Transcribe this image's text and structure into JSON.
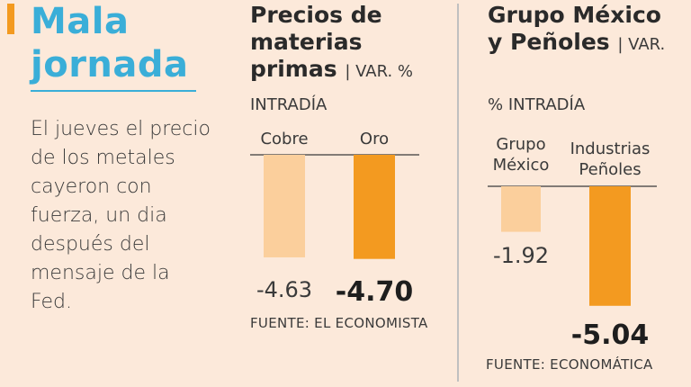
{
  "headline": {
    "line1": "Mala",
    "line2": "jornada"
  },
  "intro": "El jueves el precio de los metales cayeron con fuerza, un dia después del mensaje de la Fed.",
  "colors": {
    "accent": "#f39a20",
    "light_bar": "#fbcf9c",
    "dark_bar": "#f39a20",
    "headline": "#3aaed8",
    "background": "#fce9da"
  },
  "chart_data": [
    {
      "type": "bar",
      "title": "Precios de materias primas",
      "unit_label": "| VAR. %",
      "unit_label_2": "INTRADÍA",
      "categories": [
        "Cobre",
        "Oro"
      ],
      "values": [
        -4.63,
        -4.7
      ],
      "value_labels": [
        "-4.63",
        "-4.70"
      ],
      "ylim": [
        -5.2,
        0
      ],
      "source": "FUENTE: EL ECONOMISTA"
    },
    {
      "type": "bar",
      "title": "Grupo México y Peñoles",
      "unit_label": "| VAR.",
      "unit_label_2": "% INTRADÍA",
      "categories": [
        "Grupo México",
        "Industrias Peñoles"
      ],
      "values": [
        -1.92,
        -5.04
      ],
      "value_labels": [
        "-1.92",
        "-5.04"
      ],
      "ylim": [
        -5.2,
        0
      ],
      "source": "FUENTE: ECONOMÁTICA"
    }
  ]
}
